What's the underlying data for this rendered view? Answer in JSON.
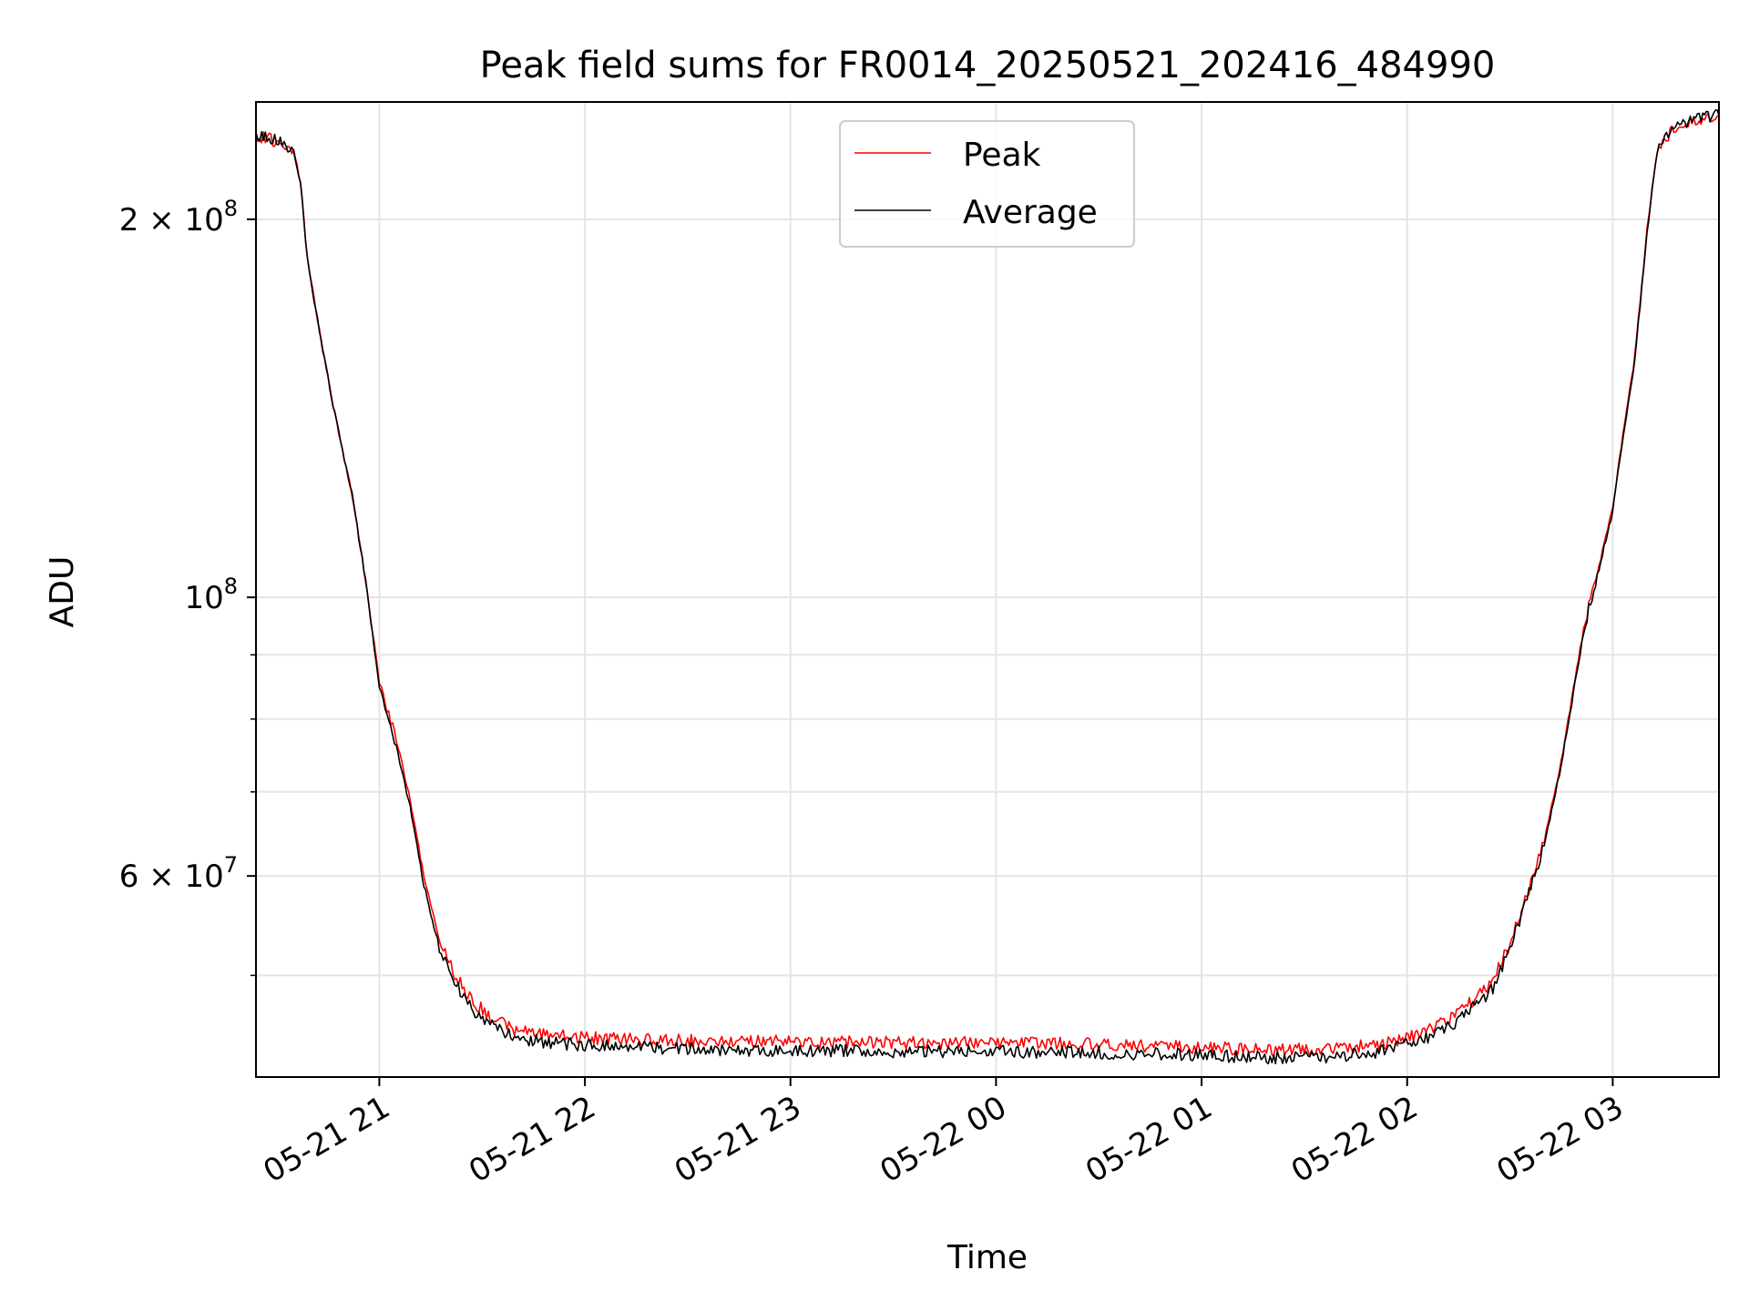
{
  "colors": {
    "background": "#ffffff",
    "grid": "#e5e5e5",
    "axis": "#000000",
    "legend_border": "#cccccc"
  },
  "chart_data": {
    "type": "line",
    "title": "Peak field sums for FR0014_20250521_202416_484990",
    "xlabel": "Time",
    "ylabel": "ADU",
    "y_scale": "log",
    "ylim": [
      41500000,
      248000000
    ],
    "xlim": [
      "2025-05-21 20:24",
      "2025-05-22 03:31"
    ],
    "x_ticks": [
      "2025-05-21 21:00",
      "2025-05-21 22:00",
      "2025-05-21 23:00",
      "2025-05-22 00:00",
      "2025-05-22 01:00",
      "2025-05-22 02:00",
      "2025-05-22 03:00"
    ],
    "x_tick_labels": [
      "05-21 21",
      "05-21 22",
      "05-21 23",
      "05-22 00",
      "05-22 01",
      "05-22 02",
      "05-22 03"
    ],
    "y_major_ticks": [
      {
        "value": 200000000,
        "mantissa": "2",
        "exponent": "8"
      },
      {
        "value": 100000000,
        "mantissa": "",
        "exponent": "8"
      },
      {
        "value": 60000000,
        "mantissa": "6",
        "exponent": "7"
      }
    ],
    "y_minor_ticks": [
      90000000,
      80000000,
      70000000,
      50000000
    ],
    "grid": true,
    "legend_position": "upper center",
    "series": [
      {
        "name": "Peak",
        "color": "#ff0000",
        "x": [
          "2025-05-21 20:24",
          "2025-05-21 20:30",
          "2025-05-21 20:35",
          "2025-05-21 20:37",
          "2025-05-21 20:39",
          "2025-05-21 20:43",
          "2025-05-21 20:47",
          "2025-05-21 20:52",
          "2025-05-21 20:56",
          "2025-05-21 21:00",
          "2025-05-21 21:05",
          "2025-05-21 21:09",
          "2025-05-21 21:13",
          "2025-05-21 21:17",
          "2025-05-21 21:22",
          "2025-05-21 21:28",
          "2025-05-21 21:34",
          "2025-05-21 21:40",
          "2025-05-21 21:50",
          "2025-05-21 22:00",
          "2025-05-21 22:20",
          "2025-05-21 22:40",
          "2025-05-21 23:00",
          "2025-05-21 23:30",
          "2025-05-22 00:00",
          "2025-05-22 00:30",
          "2025-05-22 01:00",
          "2025-05-22 01:20",
          "2025-05-22 01:40",
          "2025-05-22 01:55",
          "2025-05-22 02:05",
          "2025-05-22 02:15",
          "2025-05-22 02:25",
          "2025-05-22 02:30",
          "2025-05-22 02:35",
          "2025-05-22 02:40",
          "2025-05-22 02:45",
          "2025-05-22 02:49",
          "2025-05-22 02:52",
          "2025-05-22 02:56",
          "2025-05-22 03:00",
          "2025-05-22 03:03",
          "2025-05-22 03:06",
          "2025-05-22 03:08",
          "2025-05-22 03:10",
          "2025-05-22 03:13",
          "2025-05-22 03:20",
          "2025-05-22 03:31"
        ],
        "values": [
          233000000,
          231000000,
          227000000,
          214000000,
          186000000,
          160000000,
          140000000,
          121000000,
          103000000,
          86000000,
          77000000,
          69000000,
          60000000,
          54000000,
          50000000,
          47500000,
          46000000,
          45200000,
          44800000,
          44600000,
          44400000,
          44300000,
          44300000,
          44200000,
          44200000,
          44100000,
          43800000,
          43600000,
          43700000,
          44200000,
          45000000,
          46600000,
          49500000,
          53000000,
          58000000,
          64000000,
          74000000,
          86000000,
          96000000,
          106000000,
          118000000,
          135000000,
          152000000,
          172000000,
          196000000,
          228000000,
          239000000,
          242000000
        ]
      },
      {
        "name": "Average",
        "color": "#000000",
        "x": [
          "2025-05-21 20:24",
          "2025-05-21 20:30",
          "2025-05-21 20:35",
          "2025-05-21 20:37",
          "2025-05-21 20:39",
          "2025-05-21 20:43",
          "2025-05-21 20:47",
          "2025-05-21 20:52",
          "2025-05-21 20:56",
          "2025-05-21 21:00",
          "2025-05-21 21:05",
          "2025-05-21 21:09",
          "2025-05-21 21:13",
          "2025-05-21 21:17",
          "2025-05-21 21:22",
          "2025-05-21 21:28",
          "2025-05-21 21:34",
          "2025-05-21 21:40",
          "2025-05-21 21:50",
          "2025-05-21 22:00",
          "2025-05-21 22:20",
          "2025-05-21 22:40",
          "2025-05-21 23:00",
          "2025-05-21 23:30",
          "2025-05-22 00:00",
          "2025-05-22 00:30",
          "2025-05-22 01:00",
          "2025-05-22 01:20",
          "2025-05-22 01:40",
          "2025-05-22 01:55",
          "2025-05-22 02:05",
          "2025-05-22 02:15",
          "2025-05-22 02:25",
          "2025-05-22 02:30",
          "2025-05-22 02:35",
          "2025-05-22 02:40",
          "2025-05-22 02:45",
          "2025-05-22 02:49",
          "2025-05-22 02:52",
          "2025-05-22 02:56",
          "2025-05-22 03:00",
          "2025-05-22 03:03",
          "2025-05-22 03:06",
          "2025-05-22 03:08",
          "2025-05-22 03:10",
          "2025-05-22 03:13",
          "2025-05-22 03:20",
          "2025-05-22 03:31"
        ],
        "values": [
          233000000,
          231000000,
          227000000,
          214000000,
          186000000,
          160000000,
          140000000,
          121000000,
          103000000,
          85000000,
          76000000,
          68000000,
          59000000,
          53200000,
          49200000,
          46800000,
          45300000,
          44600000,
          44200000,
          44000000,
          43800000,
          43600000,
          43600000,
          43500000,
          43500000,
          43400000,
          43200000,
          43000000,
          43100000,
          43600000,
          44500000,
          46000000,
          48800000,
          52500000,
          57500000,
          63500000,
          73500000,
          85500000,
          95500000,
          105500000,
          117000000,
          134000000,
          151000000,
          171000000,
          195000000,
          228000000,
          239000000,
          242000000
        ]
      }
    ]
  }
}
